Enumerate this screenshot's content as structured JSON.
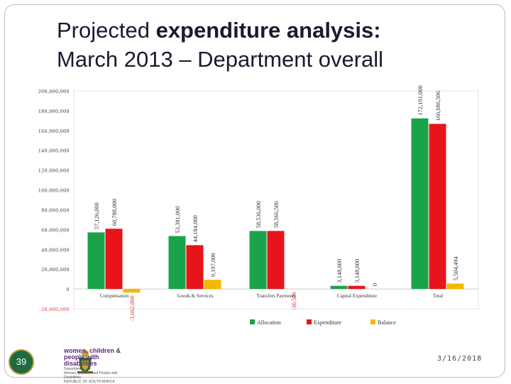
{
  "slide": {
    "title_line1_regular": "Projected ",
    "title_line1_bold": "expenditure analysis:",
    "title_line2": "March 2013 – Department overall",
    "page_number": "39",
    "date": "3/16/2018",
    "logo": {
      "line1": "women, children &",
      "line2": "people with disabilities",
      "line3": "Department:",
      "line4": "Women, Children and People with Disabilities",
      "line5": "REPUBLIC OF SOUTH AFRICA"
    }
  },
  "chart_data": {
    "type": "bar",
    "categories": [
      "Compensation",
      "Goods & Services",
      "Transfers Payments",
      "Capital Expenditure",
      "Total"
    ],
    "series": [
      {
        "name": "Allocation",
        "color": "#1aa34a",
        "values": [
          57126000,
          53381000,
          58536000,
          3148000,
          172191000
        ],
        "labels": [
          "57,126,000",
          "53,381,000",
          "58,536,000",
          "3,148,000",
          "172,191,000"
        ]
      },
      {
        "name": "Expenditure",
        "color": "#e8141b",
        "values": [
          60788000,
          44184000,
          58566506,
          3148000,
          166686506
        ],
        "labels": [
          "60,788,000",
          "44,184,000",
          "58,566,506",
          "3,148,000",
          "166,686,506"
        ]
      },
      {
        "name": "Balance",
        "color": "#f5b800",
        "values": [
          -3662000,
          9197000,
          -30506,
          0,
          5504494
        ],
        "labels": [
          "-3,662,000",
          "9,197,000",
          "-30,506",
          "0",
          "5,504,494"
        ]
      }
    ],
    "y_ticks": [
      -20000000,
      0,
      20000000,
      40000000,
      60000000,
      80000000,
      100000000,
      120000000,
      140000000,
      160000000,
      180000000,
      200000000
    ],
    "y_tick_labels": [
      "-20,000,000",
      "0",
      "20,000,000",
      "40,000,000",
      "60,000,000",
      "80,000,000",
      "100,000,000",
      "120,000,000",
      "140,000,000",
      "160,000,000",
      "180,000,000",
      "200,000,000"
    ],
    "ylim": [
      -20000000,
      200000000
    ],
    "grid": false,
    "legend_position": "bottom"
  }
}
